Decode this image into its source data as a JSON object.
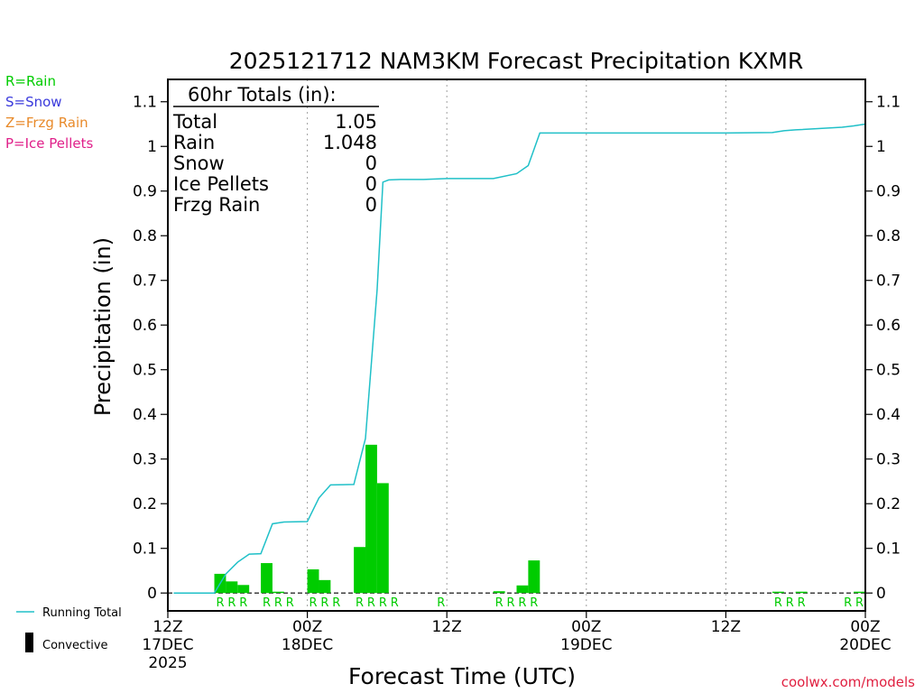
{
  "chart_data": {
    "type": "bar",
    "title": "2025121712 NAM3KM Forecast Precipitation KXMR",
    "xlabel": "Forecast Time (UTC)",
    "ylabel": "Precipitation (in)",
    "ylim": [
      -0.04,
      1.15
    ],
    "yticks": [
      0,
      0.1,
      0.2,
      0.3,
      0.4,
      0.5,
      0.6,
      0.7,
      0.8,
      0.9,
      1,
      1.1
    ],
    "ytick_labels": [
      "0",
      "0.1",
      "0.2",
      "0.3",
      "0.4",
      "0.5",
      "0.6",
      "0.7",
      "0.8",
      "0.9",
      "1",
      "1.1"
    ],
    "xlim_hours": [
      0,
      60
    ],
    "xticks": [
      {
        "hour": 0,
        "line1": "12Z",
        "line2": "17DEC",
        "line3": "2025"
      },
      {
        "hour": 12,
        "line1": "00Z",
        "line2": "18DEC",
        "line3": ""
      },
      {
        "hour": 24,
        "line1": "12Z",
        "line2": "",
        "line3": ""
      },
      {
        "hour": 36,
        "line1": "00Z",
        "line2": "19DEC",
        "line3": ""
      },
      {
        "hour": 48,
        "line1": "12Z",
        "line2": "",
        "line3": ""
      },
      {
        "hour": 60,
        "line1": "00Z",
        "line2": "20DEC",
        "line3": ""
      }
    ],
    "grid_x_hours": [
      12,
      24,
      36,
      48
    ],
    "hourly_precip": {
      "hours": [
        5,
        6,
        7,
        9,
        10,
        13,
        14,
        17,
        18,
        19,
        29,
        31,
        32,
        53,
        55,
        60
      ],
      "values": [
        0.043,
        0.026,
        0.018,
        0.067,
        0.003,
        0.053,
        0.029,
        0.103,
        0.332,
        0.246,
        0.004,
        0.017,
        0.073,
        0.003,
        0.003,
        0.003
      ]
    },
    "running_total": {
      "name": "Running Total",
      "hours": [
        0.5,
        4,
        5,
        6,
        7,
        8,
        9,
        10,
        12,
        13,
        14,
        16,
        17,
        18,
        18.5,
        19,
        20,
        22,
        24,
        28,
        30,
        31,
        32,
        38,
        44,
        48,
        52,
        53,
        54,
        58,
        59,
        60
      ],
      "values": [
        0,
        0,
        0.043,
        0.069,
        0.087,
        0.088,
        0.155,
        0.159,
        0.16,
        0.213,
        0.242,
        0.243,
        0.346,
        0.678,
        0.92,
        0.925,
        0.926,
        0.926,
        0.928,
        0.928,
        0.939,
        0.957,
        1.03,
        1.03,
        1.03,
        1.03,
        1.031,
        1.035,
        1.037,
        1.043,
        1.046,
        1.05
      ]
    },
    "precip_type_labels": [
      {
        "hour": 5,
        "label": "R"
      },
      {
        "hour": 6,
        "label": "R"
      },
      {
        "hour": 7,
        "label": "R"
      },
      {
        "hour": 9,
        "label": "R"
      },
      {
        "hour": 10,
        "label": "R"
      },
      {
        "hour": 11,
        "label": "R"
      },
      {
        "hour": 13,
        "label": "R"
      },
      {
        "hour": 14,
        "label": "R"
      },
      {
        "hour": 15,
        "label": "R"
      },
      {
        "hour": 17,
        "label": "R"
      },
      {
        "hour": 18,
        "label": "R"
      },
      {
        "hour": 19,
        "label": "R"
      },
      {
        "hour": 20,
        "label": "R"
      },
      {
        "hour": 24,
        "label": "R"
      },
      {
        "hour": 29,
        "label": "R"
      },
      {
        "hour": 30,
        "label": "R"
      },
      {
        "hour": 31,
        "label": "R"
      },
      {
        "hour": 32,
        "label": "R"
      },
      {
        "hour": 53,
        "label": "R"
      },
      {
        "hour": 54,
        "label": "R"
      },
      {
        "hour": 55,
        "label": "R"
      },
      {
        "hour": 59,
        "label": "R"
      },
      {
        "hour": 60,
        "label": "R"
      }
    ],
    "colors": {
      "bars": "#00cc00",
      "running_total": "#20c0c8",
      "type_label": "#00cc00",
      "convective": "#000000",
      "grid": "#a0a0a0"
    }
  },
  "totals_box": {
    "heading": "60hr Totals (in):",
    "rows": [
      {
        "label": "Total",
        "value": "1.05"
      },
      {
        "label": "Rain",
        "value": "1.048"
      },
      {
        "label": "Snow",
        "value": "0"
      },
      {
        "label": "Ice Pellets",
        "value": "0"
      },
      {
        "label": "Frzg Rain",
        "value": "0"
      }
    ]
  },
  "type_legend": [
    {
      "text": "R=Rain",
      "color": "#00cc00"
    },
    {
      "text": "S=Snow",
      "color": "#3a3adc"
    },
    {
      "text": "Z=Frzg Rain",
      "color": "#e88a2a"
    },
    {
      "text": "P=Ice Pellets",
      "color": "#e0208a"
    }
  ],
  "series_legend": {
    "running_total_label": "Running Total",
    "convective_label": "Convective"
  },
  "credit": {
    "text": "coolwx.com/models",
    "color": "#e02040"
  }
}
